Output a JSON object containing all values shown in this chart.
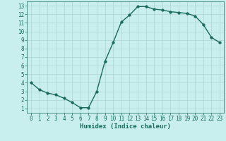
{
  "title": "",
  "xlabel": "Humidex (Indice chaleur)",
  "ylabel": "",
  "x": [
    0,
    1,
    2,
    3,
    4,
    5,
    6,
    7,
    8,
    9,
    10,
    11,
    12,
    13,
    14,
    15,
    16,
    17,
    18,
    19,
    20,
    21,
    22,
    23
  ],
  "y": [
    4.0,
    3.2,
    2.8,
    2.6,
    2.2,
    1.7,
    1.1,
    1.1,
    3.0,
    6.5,
    8.7,
    11.1,
    11.9,
    12.9,
    12.9,
    12.6,
    12.5,
    12.3,
    12.2,
    12.1,
    11.8,
    10.8,
    9.3,
    8.7
  ],
  "line_color": "#1a6b5a",
  "marker": "o",
  "marker_color": "#1a6b5a",
  "bg_color": "#c8eeee",
  "grid_color": "#aed4d4",
  "axis_color": "#1a6b5a",
  "tick_color": "#1a6b5a",
  "spine_color": "#1a6b5a",
  "xlim": [
    -0.5,
    23.5
  ],
  "ylim": [
    0.5,
    13.5
  ],
  "yticks": [
    1,
    2,
    3,
    4,
    5,
    6,
    7,
    8,
    9,
    10,
    11,
    12,
    13
  ],
  "xticks": [
    0,
    1,
    2,
    3,
    4,
    5,
    6,
    7,
    8,
    9,
    10,
    11,
    12,
    13,
    14,
    15,
    16,
    17,
    18,
    19,
    20,
    21,
    22,
    23
  ],
  "tick_fontsize": 5.5,
  "xlabel_fontsize": 6.5,
  "line_width": 1.0,
  "marker_size": 2.5
}
